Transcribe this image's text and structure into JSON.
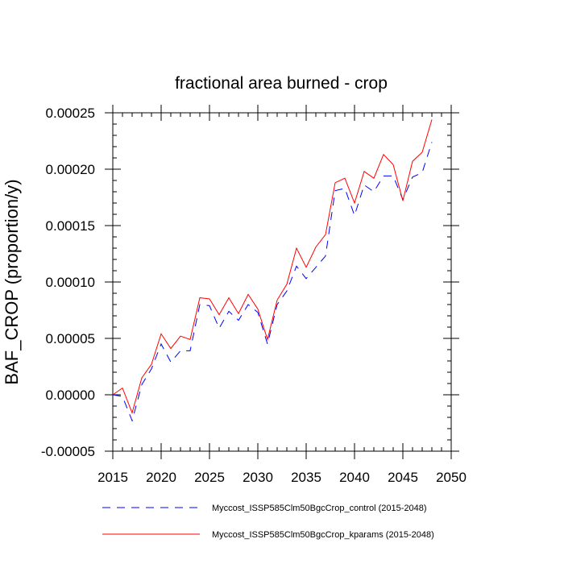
{
  "chart_data": {
    "type": "line",
    "title": "fractional area burned - crop",
    "xlabel": "",
    "ylabel": "BAF_CROP  (proportion/y)",
    "xlim": [
      2015,
      2050
    ],
    "ylim": [
      -5e-05,
      0.00025
    ],
    "xticks": [
      2015,
      2020,
      2025,
      2030,
      2035,
      2040,
      2045,
      2050
    ],
    "xtick_labels": [
      "2015",
      "2020",
      "2025",
      "2030",
      "2035",
      "2040",
      "2045",
      "2050"
    ],
    "yticks": [
      -5e-05,
      0,
      5e-05,
      0.0001,
      0.00015,
      0.0002,
      0.00025
    ],
    "ytick_labels": [
      "-0.00005",
      "0.00000",
      "0.00005",
      "0.00010",
      "0.00015",
      "0.00020",
      "0.00025"
    ],
    "grid": false,
    "legend_position": "bottom",
    "x": [
      2015,
      2016,
      2017,
      2018,
      2019,
      2020,
      2021,
      2022,
      2023,
      2024,
      2025,
      2026,
      2027,
      2028,
      2029,
      2030,
      2031,
      2032,
      2033,
      2034,
      2035,
      2036,
      2037,
      2038,
      2039,
      2040,
      2041,
      2042,
      2043,
      2044,
      2045,
      2046,
      2047,
      2048
    ],
    "series": [
      {
        "name": "Myccost_ISSP585Clm50BgcCrop_control (2015-2048)",
        "color": "#0000ff",
        "style": "dashed",
        "values": [
          0.0,
          -1.5e-06,
          -2.3e-05,
          9e-06,
          2.3e-05,
          4.5e-05,
          2.9e-05,
          3.9e-05,
          3.9e-05,
          8e-05,
          7.9e-05,
          5.9e-05,
          7.4e-05,
          6.6e-05,
          8e-05,
          7.3e-05,
          4.5e-05,
          8e-05,
          9.2e-05,
          0.000114,
          0.000103,
          0.000113,
          0.000123,
          0.000181,
          0.000183,
          0.000159,
          0.000186,
          0.00018,
          0.000194,
          0.000194,
          0.000173,
          0.000193,
          0.000197,
          0.000224
        ]
      },
      {
        "name": "Myccost_ISSP585Clm50BgcCrop_kparams (2015-2048)",
        "color": "#ff0000",
        "style": "solid",
        "values": [
          0.0,
          6e-06,
          -1.6e-05,
          1.5e-05,
          2.7e-05,
          5.4e-05,
          4.1e-05,
          5.2e-05,
          4.9e-05,
          8.6e-05,
          8.5e-05,
          7.1e-05,
          8.6e-05,
          7.2e-05,
          8.9e-05,
          7.6e-05,
          4.9e-05,
          8.4e-05,
          9.8e-05,
          0.00013,
          0.000113,
          0.000131,
          0.000142,
          0.000188,
          0.000192,
          0.00017,
          0.000198,
          0.000192,
          0.000213,
          0.000204,
          0.000172,
          0.000207,
          0.000215,
          0.000244
        ]
      }
    ]
  }
}
